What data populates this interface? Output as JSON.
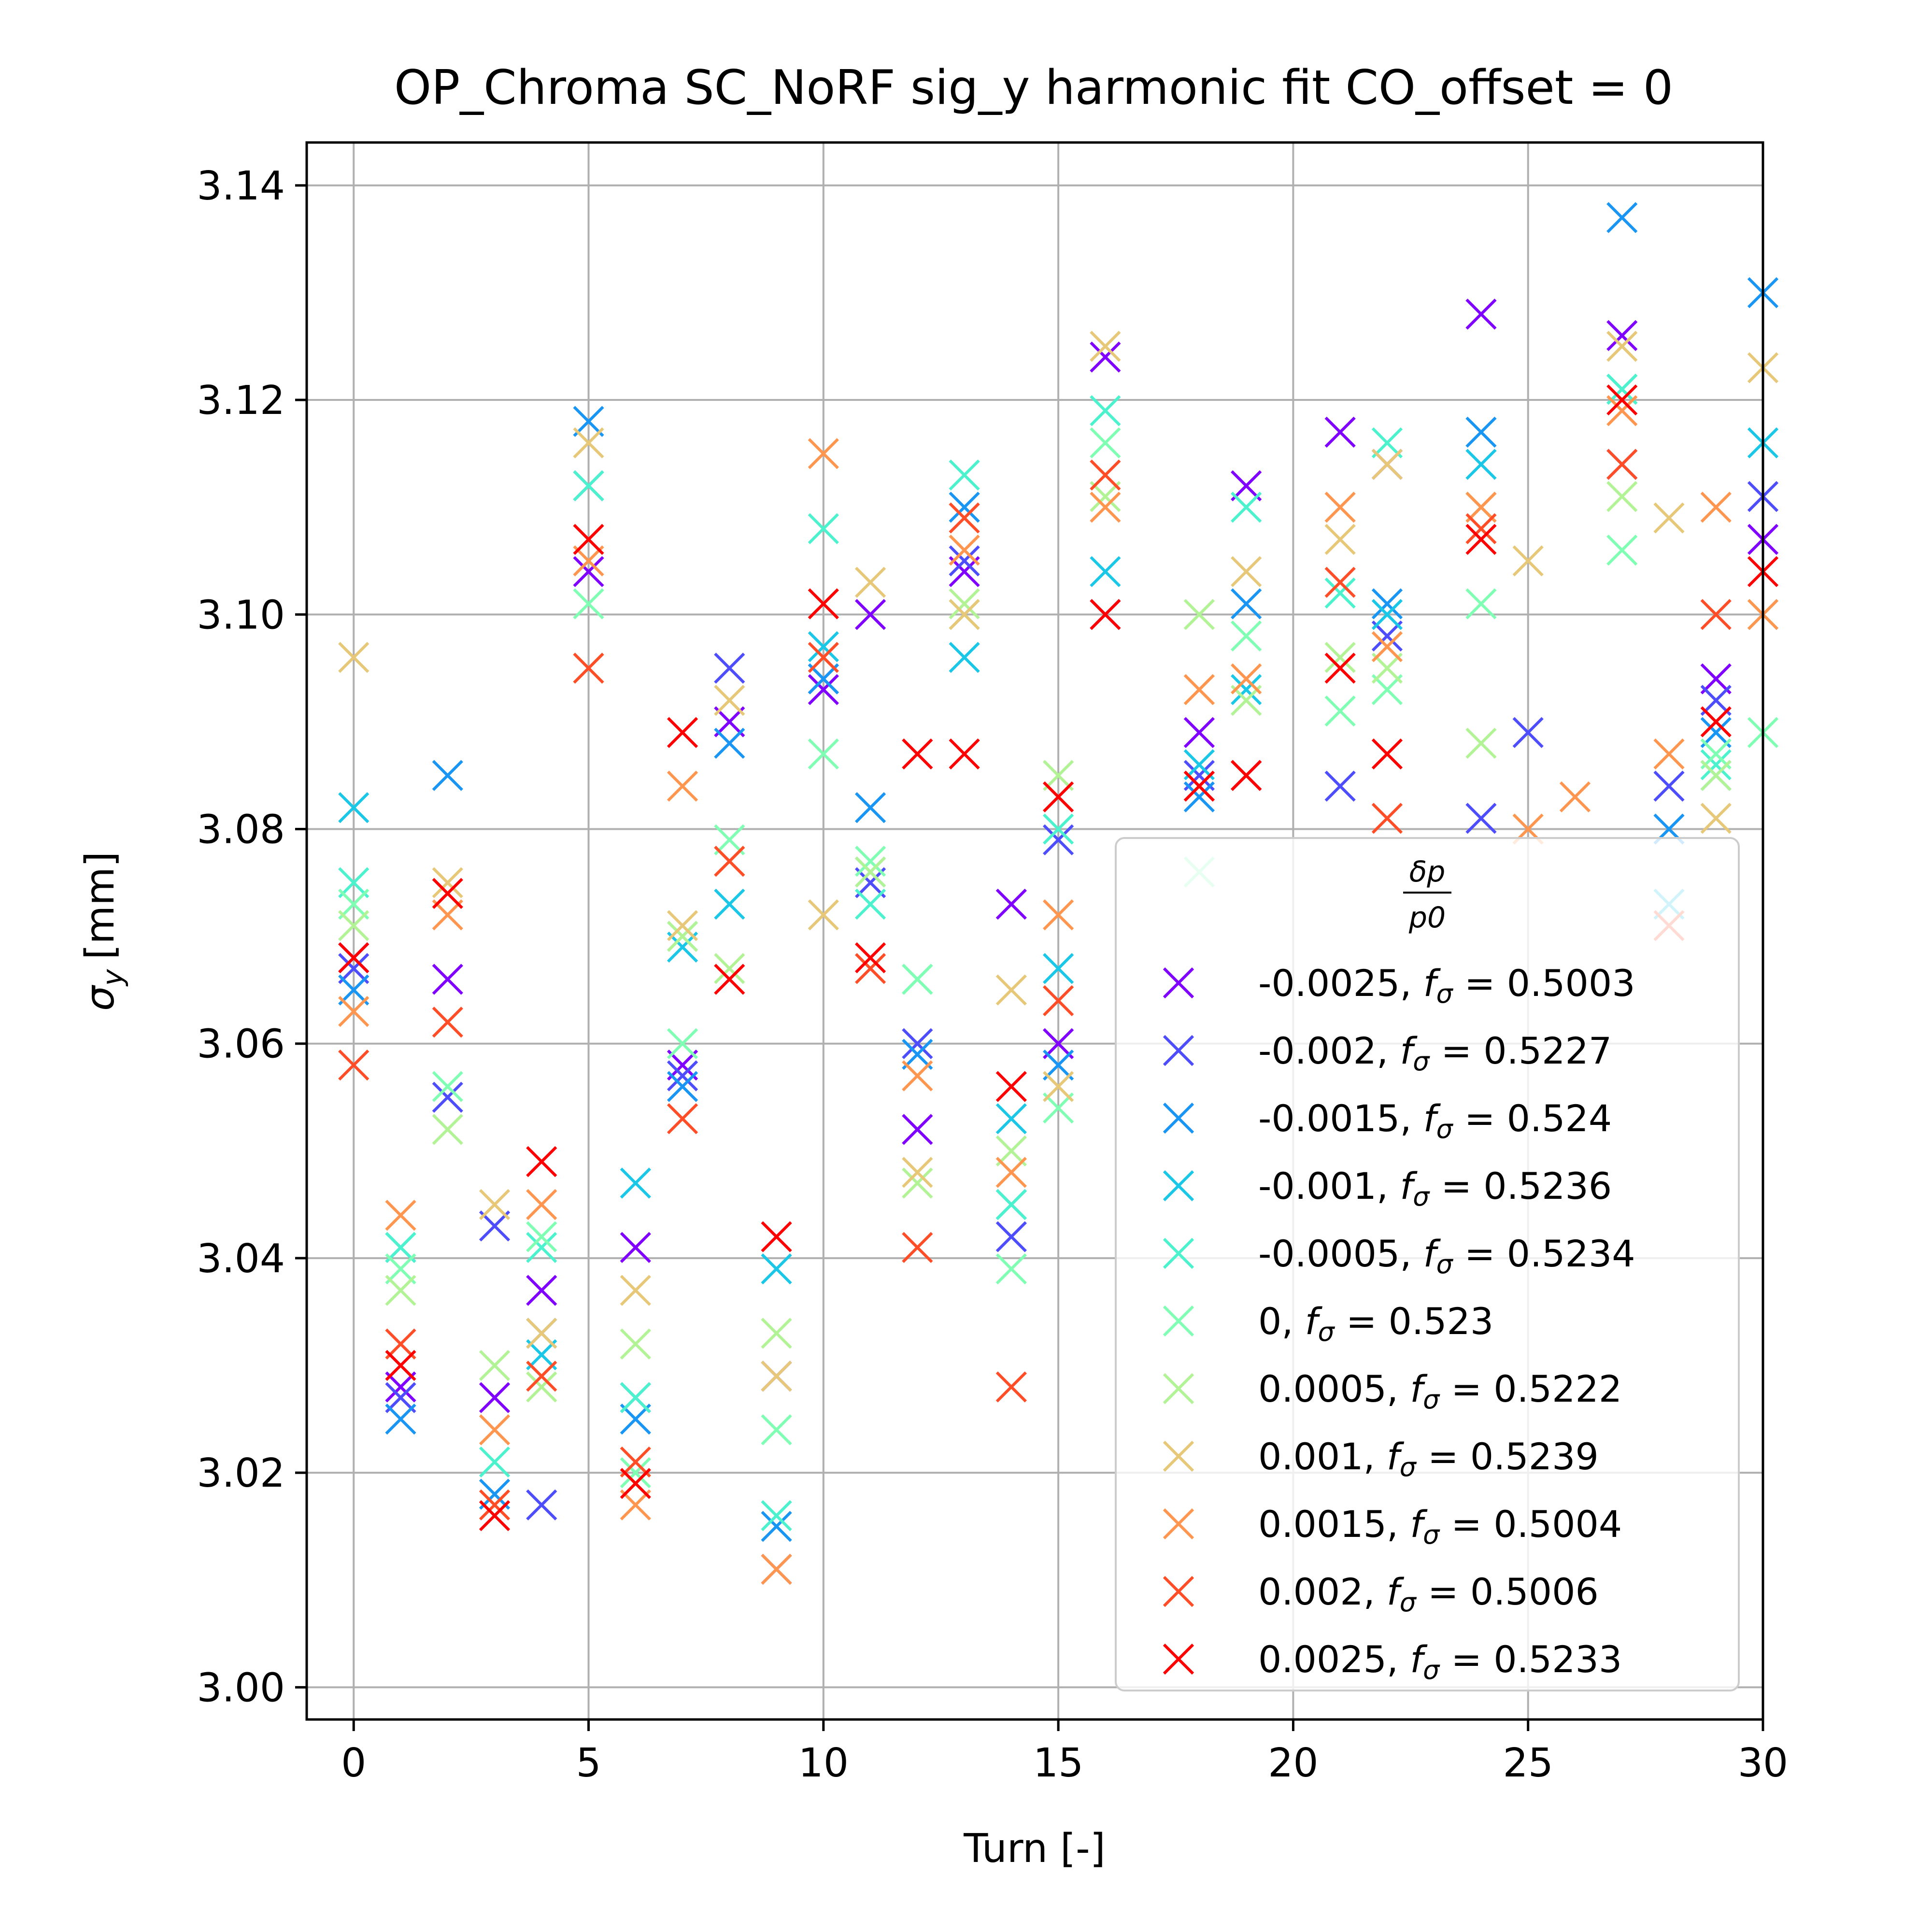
{
  "chart_data": {
    "type": "scatter",
    "title": "OP_Chroma SC_NoRF sig_y harmonic fit CO_offset = 0",
    "xlabel": "Turn [-]",
    "ylabel_symbol": "σ",
    "ylabel_sub": "y",
    "ylabel_unit": "[mm]",
    "xlim": [
      -1,
      30
    ],
    "ylim": [
      2.997,
      3.144
    ],
    "xticks": [
      "0",
      "5",
      "10",
      "15",
      "20",
      "25",
      "30"
    ],
    "yticks": [
      "3.00",
      "3.02",
      "3.04",
      "3.06",
      "3.08",
      "3.10",
      "3.12",
      "3.14"
    ],
    "grid": true,
    "legend_position": "lower right",
    "legend_title_num": "δp",
    "legend_title_den": "p0",
    "marker": "x",
    "series": [
      {
        "name": "-0.0025, fσ = 0.5003",
        "dp": "-0.0025",
        "f": "0.5003",
        "color": "#8000ff",
        "x": [
          0,
          1,
          2,
          3,
          4,
          5,
          6,
          7,
          8,
          9,
          10,
          11,
          12,
          13,
          14,
          15,
          16,
          18,
          19,
          21,
          22,
          24,
          27,
          29,
          30
        ],
        "y": [
          3.068,
          3.028,
          3.066,
          3.027,
          3.037,
          3.104,
          3.041,
          3.058,
          3.09,
          3.029,
          3.093,
          3.1,
          3.052,
          3.104,
          3.073,
          3.06,
          3.124,
          3.089,
          3.112,
          3.117,
          3.114,
          3.128,
          3.126,
          3.094,
          3.107
        ]
      },
      {
        "name": "-0.002, fσ = 0.5227",
        "dp": "-0.002",
        "f": "0.5227",
        "color": "#4e4dfc",
        "x": [
          0,
          1,
          2,
          3,
          4,
          5,
          6,
          7,
          8,
          9,
          10,
          11,
          12,
          13,
          14,
          15,
          16,
          18,
          19,
          21,
          22,
          24,
          25,
          27,
          28,
          29,
          30
        ],
        "y": [
          3.067,
          3.027,
          3.055,
          3.043,
          3.017,
          3.112,
          3.027,
          3.057,
          3.095,
          3.011,
          3.094,
          3.075,
          3.06,
          3.105,
          3.042,
          3.079,
          3.1,
          3.085,
          3.085,
          3.084,
          3.098,
          3.081,
          3.089,
          3.114,
          3.084,
          3.092,
          3.111
        ]
      },
      {
        "name": "-0.0015, fσ = 0.524",
        "dp": "-0.0015",
        "f": "0.524",
        "color": "#1996f3",
        "x": [
          0,
          1,
          2,
          3,
          4,
          5,
          6,
          7,
          8,
          9,
          10,
          11,
          12,
          13,
          14,
          15,
          18,
          19,
          22,
          24,
          27,
          28,
          29,
          30
        ],
        "y": [
          3.065,
          3.025,
          3.085,
          3.018,
          3.033,
          3.118,
          3.025,
          3.056,
          3.088,
          3.015,
          3.094,
          3.082,
          3.059,
          3.11,
          3.045,
          3.058,
          3.083,
          3.101,
          3.101,
          3.117,
          3.137,
          3.08,
          3.089,
          3.13
        ]
      },
      {
        "name": "-0.001, fσ = 0.5236",
        "dp": "-0.001",
        "f": "0.5236",
        "color": "#1ac7e6",
        "x": [
          0,
          1,
          4,
          6,
          7,
          8,
          9,
          10,
          11,
          13,
          14,
          15,
          16,
          18,
          19,
          22,
          24,
          27,
          28,
          29,
          30
        ],
        "y": [
          3.082,
          3.041,
          3.031,
          3.047,
          3.069,
          3.073,
          3.039,
          3.097,
          3.076,
          3.096,
          3.053,
          3.067,
          3.104,
          3.086,
          3.093,
          3.1,
          3.114,
          3.121,
          3.073,
          3.085,
          3.116
        ]
      },
      {
        "name": "-0.0005, fσ = 0.5234",
        "dp": "-0.0005",
        "f": "0.5234",
        "color": "#4cf2ce",
        "x": [
          0,
          1,
          3,
          4,
          5,
          6,
          7,
          9,
          10,
          11,
          12,
          13,
          14,
          15,
          16,
          19,
          21,
          22,
          24,
          27,
          29,
          30
        ],
        "y": [
          3.075,
          3.041,
          3.021,
          3.041,
          3.112,
          3.027,
          3.07,
          3.016,
          3.108,
          3.073,
          3.066,
          3.113,
          3.045,
          3.08,
          3.119,
          3.11,
          3.102,
          3.116,
          3.11,
          3.121,
          3.086,
          3.1
        ]
      },
      {
        "name": "0, fσ = 0.523",
        "dp": "0",
        "f": "0.523",
        "color": "#80ffb4",
        "x": [
          0,
          1,
          2,
          4,
          5,
          6,
          7,
          8,
          9,
          10,
          11,
          12,
          13,
          14,
          15,
          16,
          18,
          19,
          21,
          22,
          24,
          27,
          29,
          30
        ],
        "y": [
          3.073,
          3.039,
          3.056,
          3.042,
          3.101,
          3.02,
          3.06,
          3.079,
          3.024,
          3.087,
          3.077,
          3.066,
          3.1,
          3.039,
          3.054,
          3.116,
          3.076,
          3.098,
          3.091,
          3.093,
          3.101,
          3.106,
          3.087,
          3.089
        ]
      },
      {
        "name": "0.0005, fσ = 0.5222",
        "dp": "0.0005",
        "f": "0.5222",
        "color": "#b2f396",
        "x": [
          0,
          1,
          2,
          3,
          4,
          5,
          6,
          7,
          8,
          9,
          10,
          11,
          12,
          13,
          14,
          15,
          16,
          18,
          19,
          21,
          22,
          24,
          27,
          29
        ],
        "y": [
          3.071,
          3.037,
          3.052,
          3.03,
          3.028,
          3.095,
          3.032,
          3.07,
          3.067,
          3.033,
          3.101,
          3.076,
          3.047,
          3.101,
          3.05,
          3.085,
          3.111,
          3.1,
          3.092,
          3.096,
          3.095,
          3.088,
          3.111,
          3.085
        ]
      },
      {
        "name": "0.001, fσ = 0.5239",
        "dp": "0.001",
        "f": "0.5239",
        "color": "#e6c878",
        "x": [
          0,
          2,
          3,
          4,
          5,
          6,
          7,
          8,
          9,
          10,
          11,
          12,
          13,
          14,
          15,
          16,
          18,
          19,
          21,
          22,
          24,
          25,
          27,
          28,
          29,
          30
        ],
        "y": [
          3.096,
          3.075,
          3.045,
          3.033,
          3.116,
          3.037,
          3.071,
          3.092,
          3.029,
          3.072,
          3.103,
          3.048,
          3.1,
          3.065,
          3.056,
          3.125,
          3.093,
          3.104,
          3.107,
          3.114,
          3.11,
          3.105,
          3.125,
          3.109,
          3.081,
          3.123
        ]
      },
      {
        "name": "0.0015, fσ = 0.5004",
        "dp": "0.0015",
        "f": "0.5004",
        "color": "#ff964f",
        "x": [
          0,
          1,
          2,
          3,
          4,
          5,
          6,
          7,
          8,
          9,
          10,
          12,
          13,
          14,
          15,
          16,
          18,
          19,
          21,
          22,
          24,
          25,
          26,
          27,
          28,
          29,
          30
        ],
        "y": [
          3.063,
          3.044,
          3.072,
          3.024,
          3.045,
          3.105,
          3.017,
          3.084,
          3.077,
          3.011,
          3.115,
          3.057,
          3.106,
          3.048,
          3.072,
          3.11,
          3.093,
          3.094,
          3.11,
          3.097,
          3.11,
          3.08,
          3.083,
          3.119,
          3.087,
          3.11,
          3.1
        ]
      },
      {
        "name": "0.002, fσ = 0.5006",
        "dp": "0.002",
        "f": "0.5006",
        "color": "#ff4e27",
        "x": [
          0,
          1,
          2,
          3,
          4,
          5,
          6,
          7,
          8,
          10,
          11,
          12,
          13,
          14,
          15,
          16,
          18,
          19,
          21,
          22,
          24,
          27,
          28,
          29
        ],
        "y": [
          3.058,
          3.032,
          3.062,
          3.017,
          3.029,
          3.095,
          3.021,
          3.053,
          3.077,
          3.096,
          3.067,
          3.041,
          3.109,
          3.028,
          3.064,
          3.113,
          3.084,
          3.085,
          3.103,
          3.081,
          3.108,
          3.114,
          3.071,
          3.1
        ]
      },
      {
        "name": "0.0025, fσ = 0.5233",
        "dp": "0.0025",
        "f": "0.5233",
        "color": "#ff0000",
        "x": [
          0,
          1,
          2,
          3,
          4,
          5,
          6,
          7,
          8,
          9,
          10,
          11,
          12,
          13,
          14,
          15,
          16,
          18,
          19,
          21,
          22,
          24,
          27,
          29,
          30
        ],
        "y": [
          3.068,
          3.03,
          3.074,
          3.016,
          3.049,
          3.107,
          3.019,
          3.089,
          3.066,
          3.042,
          3.101,
          3.068,
          3.087,
          3.087,
          3.056,
          3.083,
          3.1,
          3.084,
          3.085,
          3.095,
          3.087,
          3.107,
          3.12,
          3.09,
          3.104
        ]
      }
    ]
  }
}
